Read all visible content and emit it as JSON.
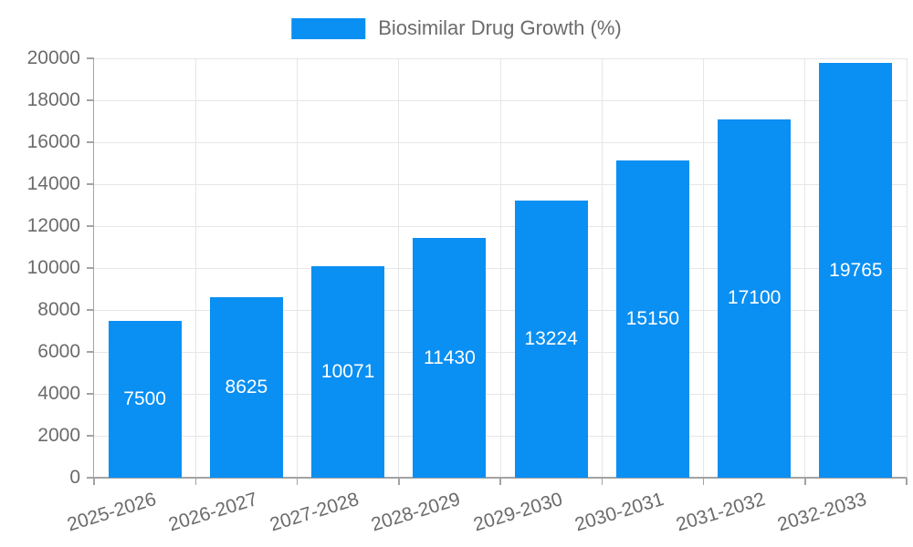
{
  "legend": {
    "label": "Biosimilar Drug Growth (%)"
  },
  "chart_data": {
    "type": "bar",
    "title": "Biosimilar Drug Growth (%)",
    "categories": [
      "2025-2026",
      "2026-2027",
      "2027-2028",
      "2028-2029",
      "2029-2030",
      "2030-2031",
      "2031-2032",
      "2032-2033"
    ],
    "values": [
      7500,
      8625,
      10071,
      11430,
      13224,
      15150,
      17100,
      19765
    ],
    "value_labels_position": "inside-center",
    "xlabel": "",
    "ylabel": "",
    "ylim": [
      0,
      20000
    ],
    "yticks": [
      0,
      2000,
      4000,
      6000,
      8000,
      10000,
      12000,
      14000,
      16000,
      18000,
      20000
    ],
    "grid": true,
    "legend_position": "top-center",
    "x_label_rotation_deg": -17,
    "colors": {
      "bar": "#0a8ff2",
      "value_label": "#ffffff",
      "grid": "#e6e6e6",
      "axis": "#a3a3a3",
      "tick_text": "#6b6b6b",
      "legend_text": "#6b6b6b",
      "background": "#ffffff"
    }
  }
}
